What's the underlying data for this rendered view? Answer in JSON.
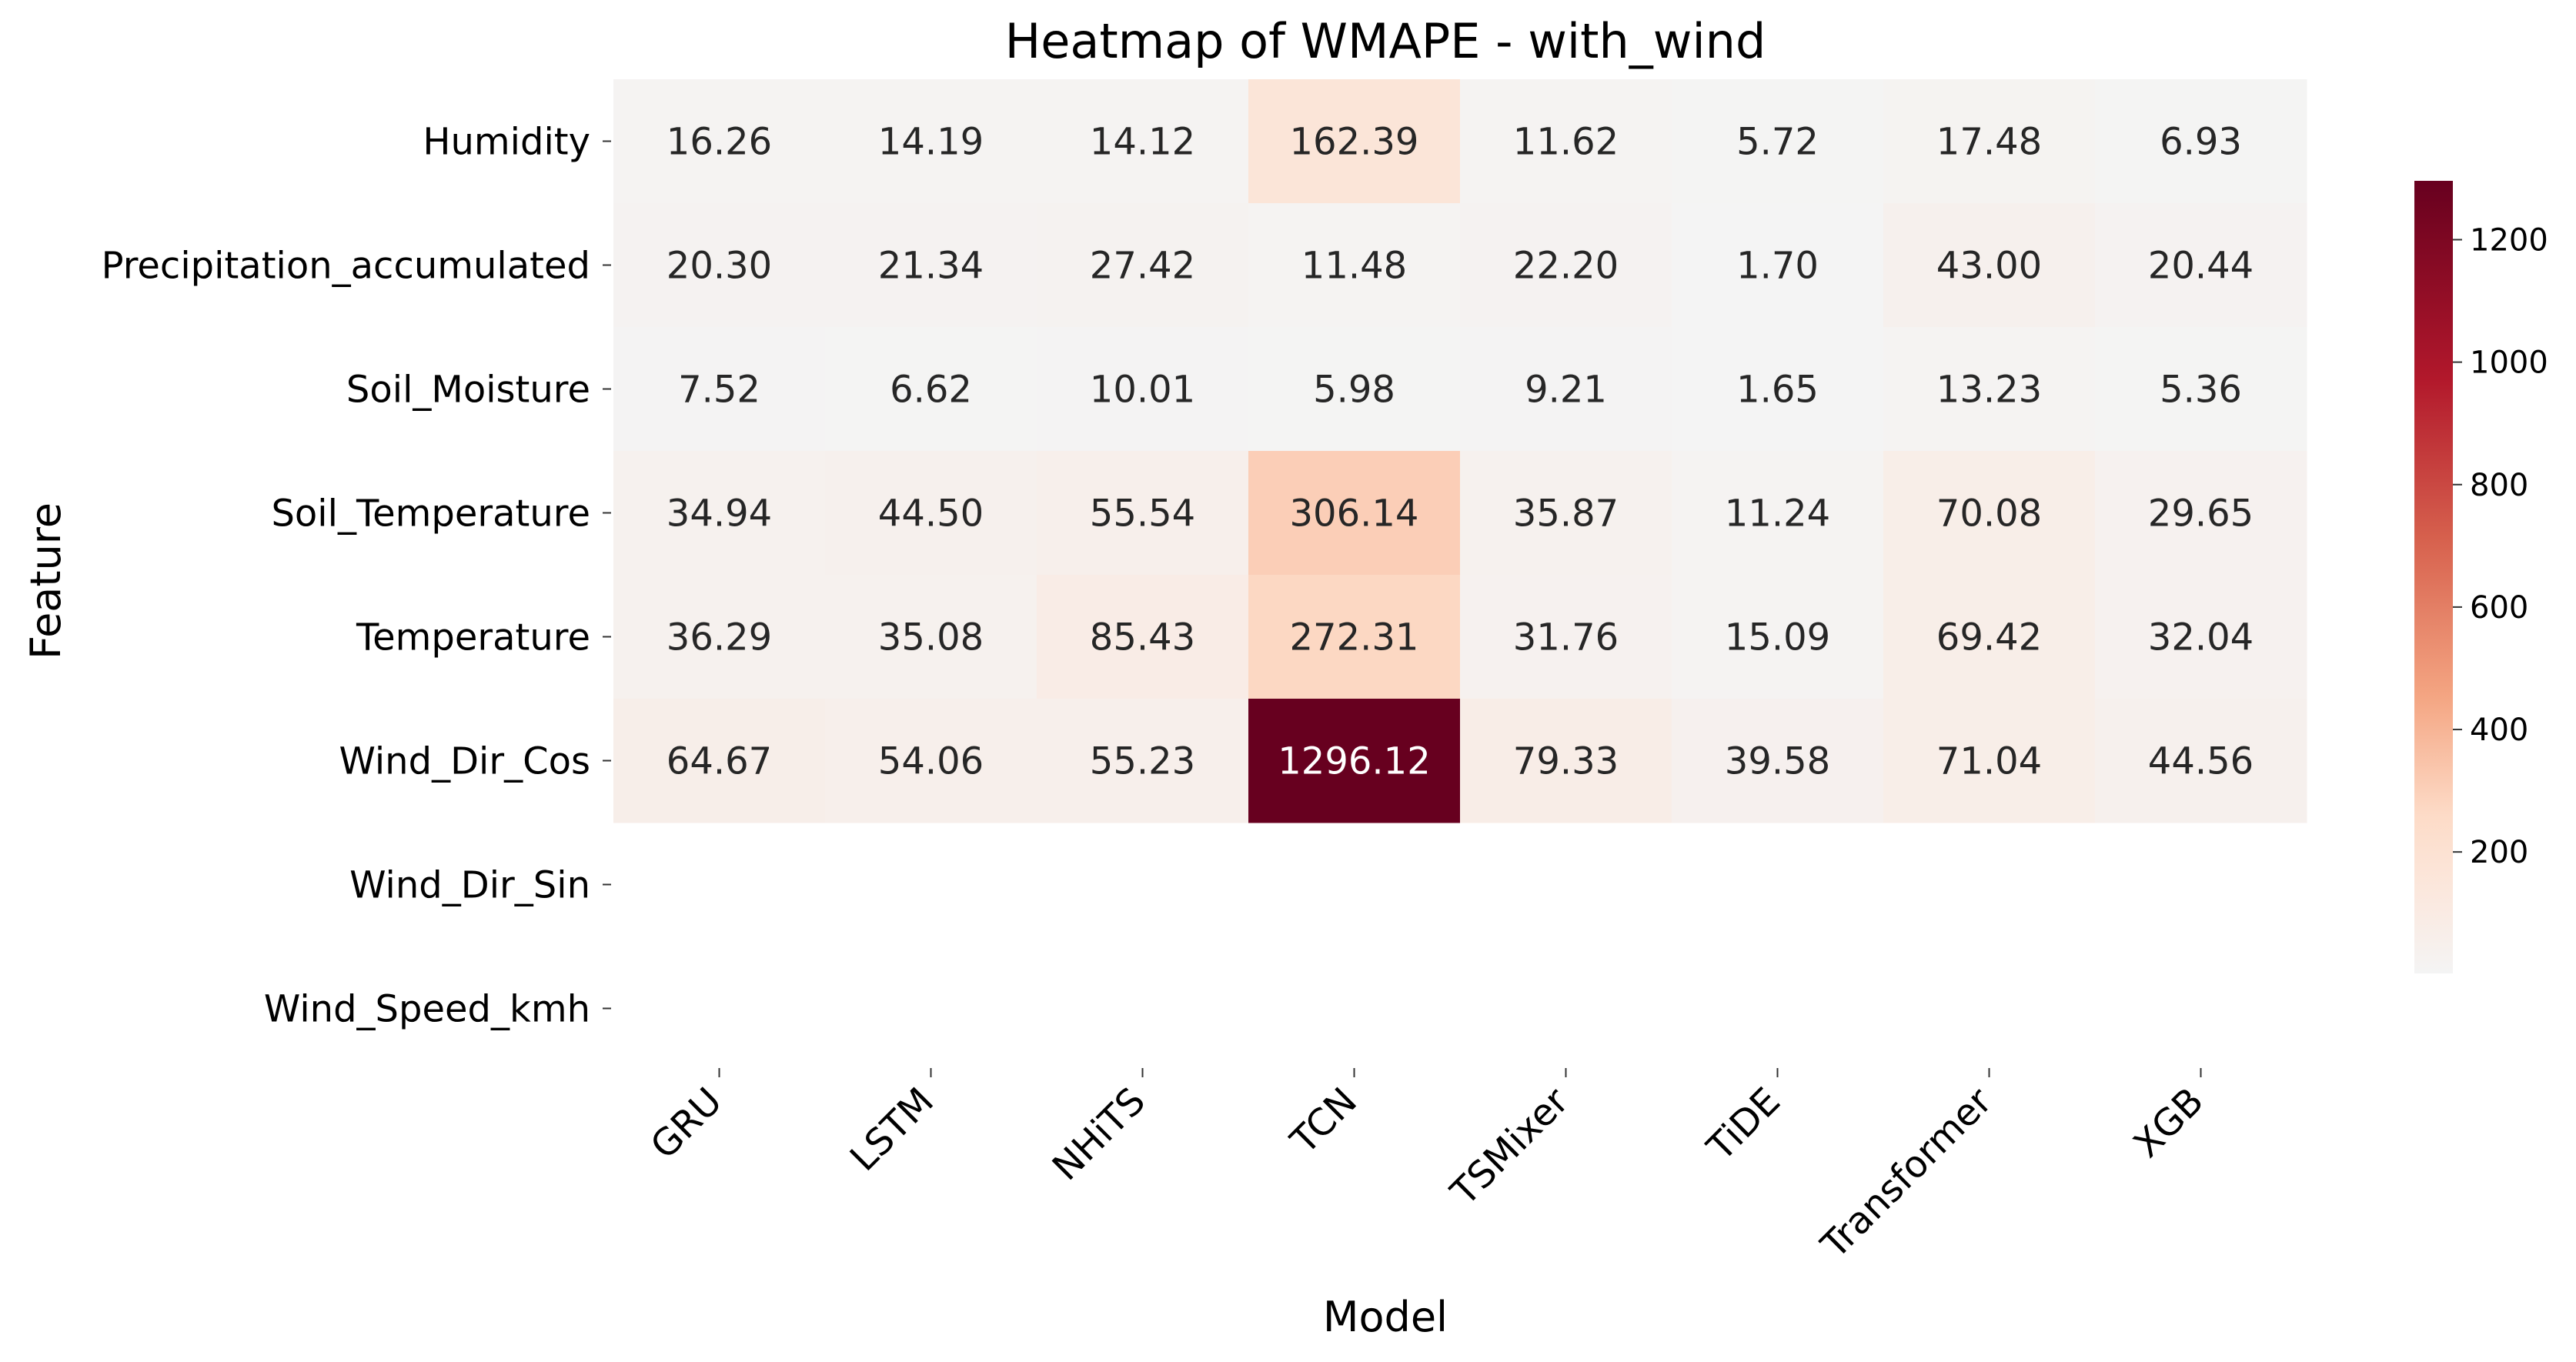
{
  "chart_data": {
    "type": "heatmap",
    "title": "Heatmap of WMAPE - with_wind",
    "xlabel": "Model",
    "ylabel": "Feature",
    "columns": [
      "GRU",
      "LSTM",
      "NHiTS",
      "TCN",
      "TSMixer",
      "TiDE",
      "Transformer",
      "XGB"
    ],
    "rows": [
      "Humidity",
      "Precipitation_accumulated",
      "Soil_Moisture",
      "Soil_Temperature",
      "Temperature",
      "Wind_Dir_Cos",
      "Wind_Dir_Sin",
      "Wind_Speed_kmh"
    ],
    "values": [
      [
        16.26,
        14.19,
        14.12,
        162.39,
        11.62,
        5.72,
        17.48,
        6.93
      ],
      [
        20.3,
        21.34,
        27.42,
        11.48,
        22.2,
        1.7,
        43.0,
        20.44
      ],
      [
        7.52,
        6.62,
        10.01,
        5.98,
        9.21,
        1.65,
        13.23,
        5.36
      ],
      [
        34.94,
        44.5,
        55.54,
        306.14,
        35.87,
        11.24,
        70.08,
        29.65
      ],
      [
        36.29,
        35.08,
        85.43,
        272.31,
        31.76,
        15.09,
        69.42,
        32.04
      ],
      [
        64.67,
        54.06,
        55.23,
        1296.12,
        79.33,
        39.58,
        71.04,
        44.56
      ],
      [
        null,
        null,
        null,
        null,
        null,
        null,
        null,
        null
      ],
      [
        null,
        null,
        null,
        null,
        null,
        null,
        null,
        null
      ]
    ],
    "value_format": "2 decimals",
    "colormap": "RdGy_r (light gray to dark red)",
    "colorbar": {
      "min": 1.65,
      "max": 1296.12,
      "ticks": [
        200,
        400,
        600,
        800,
        1000,
        1200
      ],
      "tick_labels": [
        "200",
        "400",
        "600",
        "800",
        "1000",
        "1200"
      ]
    },
    "colors": {
      "low": "#f4f4f4",
      "high": "#67001f",
      "text_dark": "#262626",
      "text_light": "#ffffff"
    }
  }
}
